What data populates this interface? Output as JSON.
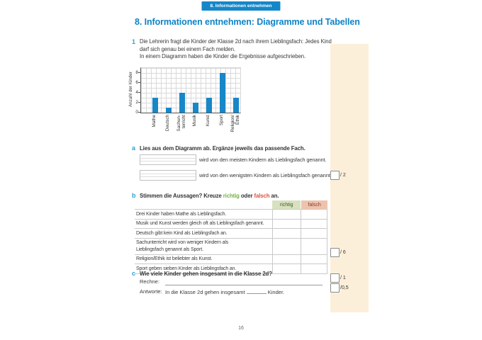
{
  "header": {
    "tab_label": "8. Informationen entnehmen"
  },
  "page": {
    "title": "8. Informationen entnehmen: Diagramme und Tabellen",
    "page_number": "16"
  },
  "task1": {
    "marker": "1",
    "lines": [
      "Die Lehrerin fragt die Kinder der Klasse 2d nach ihrem Lieblingsfach: Jedes Kind",
      "darf sich genau bei einem Fach melden.",
      "In einem Diagramm haben die Kinder die Ergebnisse aufgeschrieben."
    ]
  },
  "chart_data": {
    "type": "bar",
    "categories": [
      "Mathe",
      "Deutsch",
      "Sachun-\nterricht",
      "Musik",
      "Kunst",
      "Sport",
      "Religion/\nEthik"
    ],
    "values": [
      3,
      1,
      4,
      2,
      3,
      8,
      3
    ],
    "title": "",
    "xlabel": "",
    "ylabel": "Anzahl der Kinder",
    "ylim": [
      0,
      9
    ],
    "yticks": [
      0,
      2,
      4,
      6,
      8
    ],
    "grid": true,
    "bar_color": "#1787c7"
  },
  "task_a": {
    "marker": "a",
    "prompt": "Lies aus dem Diagramm ab. Ergänze jeweils das passende Fach.",
    "answers": [
      "wird von den meisten Kindern als Lieblingsfach genannt.",
      "wird von den wenigsten Kindern als Lieblingsfach genannt."
    ],
    "score": "/ 2"
  },
  "task_b": {
    "marker": "b",
    "prompt_prefix": "Stimmen die Aussagen? Kreuze ",
    "word_richtig": "richtig",
    "prompt_middle": " oder ",
    "word_falsch": "falsch",
    "prompt_suffix": " an.",
    "col_richtig": "richtig",
    "col_falsch": "falsch",
    "statements": [
      "Drei Kinder haben Mathe als Lieblingsfach.",
      "Musik und Kunst werden gleich oft als Lieblingsfach genannt.",
      "Deutsch gibt kein Kind als Lieblingsfach an.",
      "Sachunterricht wird von weniger Kindern als\nLieblingsfach genannt als Sport.",
      "Religion/Ethik ist beliebter als Kunst.",
      "Sport geben sieben Kinder als Lieblingsfach an."
    ],
    "score": "/ 6"
  },
  "task_c": {
    "marker": "c",
    "prompt": "Wie viele Kinder gehen insgesamt in die Klasse 2d?",
    "rechne_label": "Rechne:",
    "antworte_label": "Antworte:",
    "answer_prefix": "In die Klasse 2d gehen insgesamt",
    "answer_suffix": "Kinder.",
    "score_rechne": "/ 1",
    "score_antwort": "/0,5"
  },
  "colors": {
    "tab_blue": "#1487c9",
    "title_blue": "#0d83c6",
    "marker_blue": "#29a0d8",
    "bar_blue": "#1787c7",
    "richtig_green": "#76b043",
    "falsch_red": "#e0503c",
    "richtig_header_bg": "#d7e1c0",
    "falsch_header_bg": "#eec3ae",
    "sidebar_beige": "#fcefd9"
  }
}
